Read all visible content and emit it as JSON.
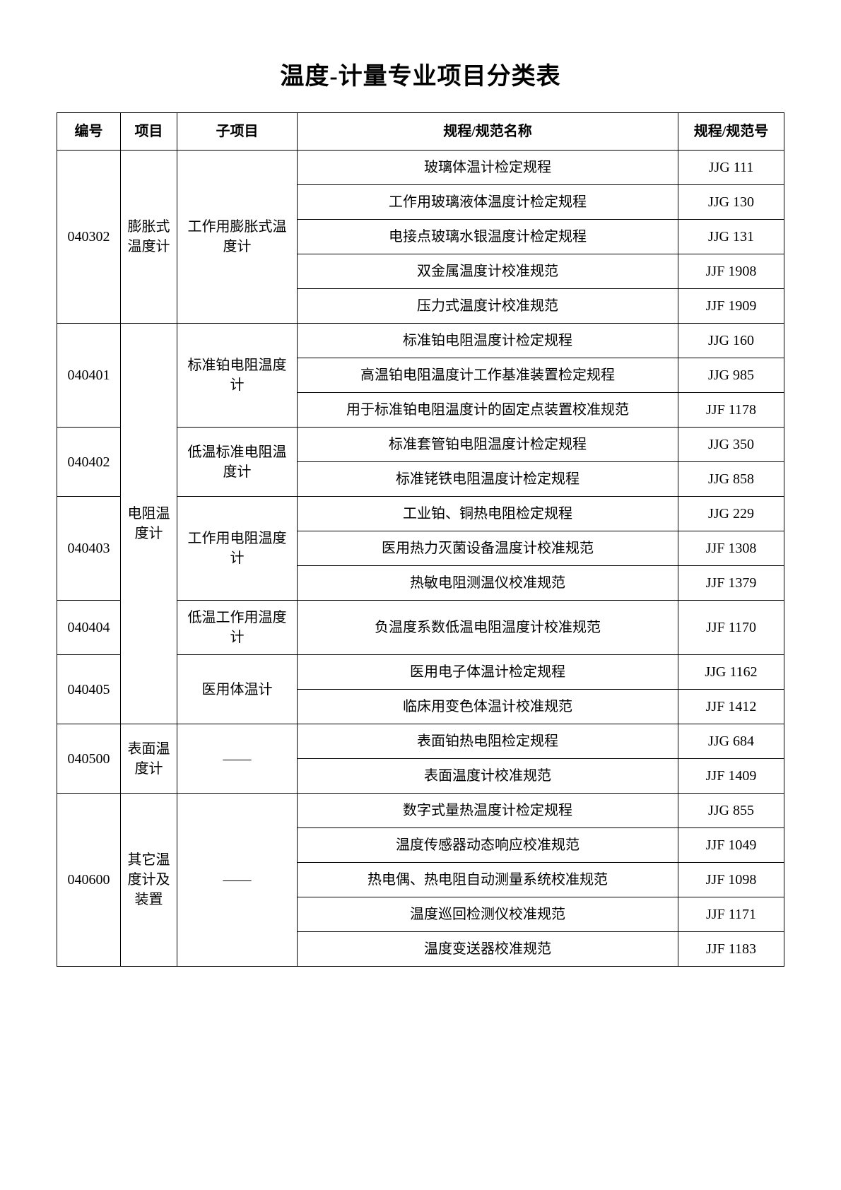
{
  "title": "温度-计量专业项目分类表",
  "headers": {
    "code": "编号",
    "project": "项目",
    "sub": "子项目",
    "name": "规程/规范名称",
    "num": "规程/规范号"
  },
  "sections": [
    {
      "code": "040302",
      "project": "膨胀式温度计",
      "sub": "工作用膨胀式温度计",
      "rows": [
        {
          "name": "玻璃体温计检定规程",
          "num": "JJG 111"
        },
        {
          "name": "工作用玻璃液体温度计检定规程",
          "num": "JJG 130"
        },
        {
          "name": "电接点玻璃水银温度计检定规程",
          "num": "JJG 131"
        },
        {
          "name": "双金属温度计校准规范",
          "num": "JJF 1908"
        },
        {
          "name": "压力式温度计校准规范",
          "num": "JJF 1909"
        }
      ]
    },
    {
      "project": "电阻温度计",
      "groups": [
        {
          "code": "040401",
          "sub": "标准铂电阻温度计",
          "rows": [
            {
              "name": "标准铂电阻温度计检定规程",
              "num": "JJG 160"
            },
            {
              "name": "高温铂电阻温度计工作基准装置检定规程",
              "num": "JJG 985"
            },
            {
              "name": "用于标准铂电阻温度计的固定点装置校准规范",
              "num": "JJF 1178"
            }
          ]
        },
        {
          "code": "040402",
          "sub": "低温标准电阻温度计",
          "rows": [
            {
              "name": "标准套管铂电阻温度计检定规程",
              "num": "JJG 350"
            },
            {
              "name": "标准铑铁电阻温度计检定规程",
              "num": "JJG 858"
            }
          ]
        },
        {
          "code": "040403",
          "sub": "工作用电阻温度计",
          "rows": [
            {
              "name": "工业铂、铜热电阻检定规程",
              "num": "JJG 229"
            },
            {
              "name": "医用热力灭菌设备温度计校准规范",
              "num": "JJF 1308"
            },
            {
              "name": "热敏电阻测温仪校准规范",
              "num": "JJF 1379"
            }
          ]
        },
        {
          "code": "040404",
          "sub": "低温工作用温度计",
          "rows": [
            {
              "name": "负温度系数低温电阻温度计校准规范",
              "num": "JJF 1170"
            }
          ]
        },
        {
          "code": "040405",
          "sub": "医用体温计",
          "rows": [
            {
              "name": "医用电子体温计检定规程",
              "num": "JJG 1162"
            },
            {
              "name": "临床用变色体温计校准规范",
              "num": "JJF 1412"
            }
          ]
        }
      ]
    },
    {
      "code": "040500",
      "project": "表面温度计",
      "sub": "——",
      "rows": [
        {
          "name": "表面铂热电阻检定规程",
          "num": "JJG 684"
        },
        {
          "name": "表面温度计校准规范",
          "num": "JJF 1409"
        }
      ]
    },
    {
      "code": "040600",
      "project": "其它温度计及装置",
      "sub": "——",
      "rows": [
        {
          "name": "数字式量热温度计检定规程",
          "num": "JJG 855"
        },
        {
          "name": "温度传感器动态响应校准规范",
          "num": "JJF 1049"
        },
        {
          "name": "热电偶、热电阻自动测量系统校准规范",
          "num": "JJF 1098"
        },
        {
          "name": "温度巡回检测仪校准规范",
          "num": "JJF 1171"
        },
        {
          "name": "温度变送器校准规范",
          "num": "JJF 1183"
        }
      ]
    }
  ]
}
